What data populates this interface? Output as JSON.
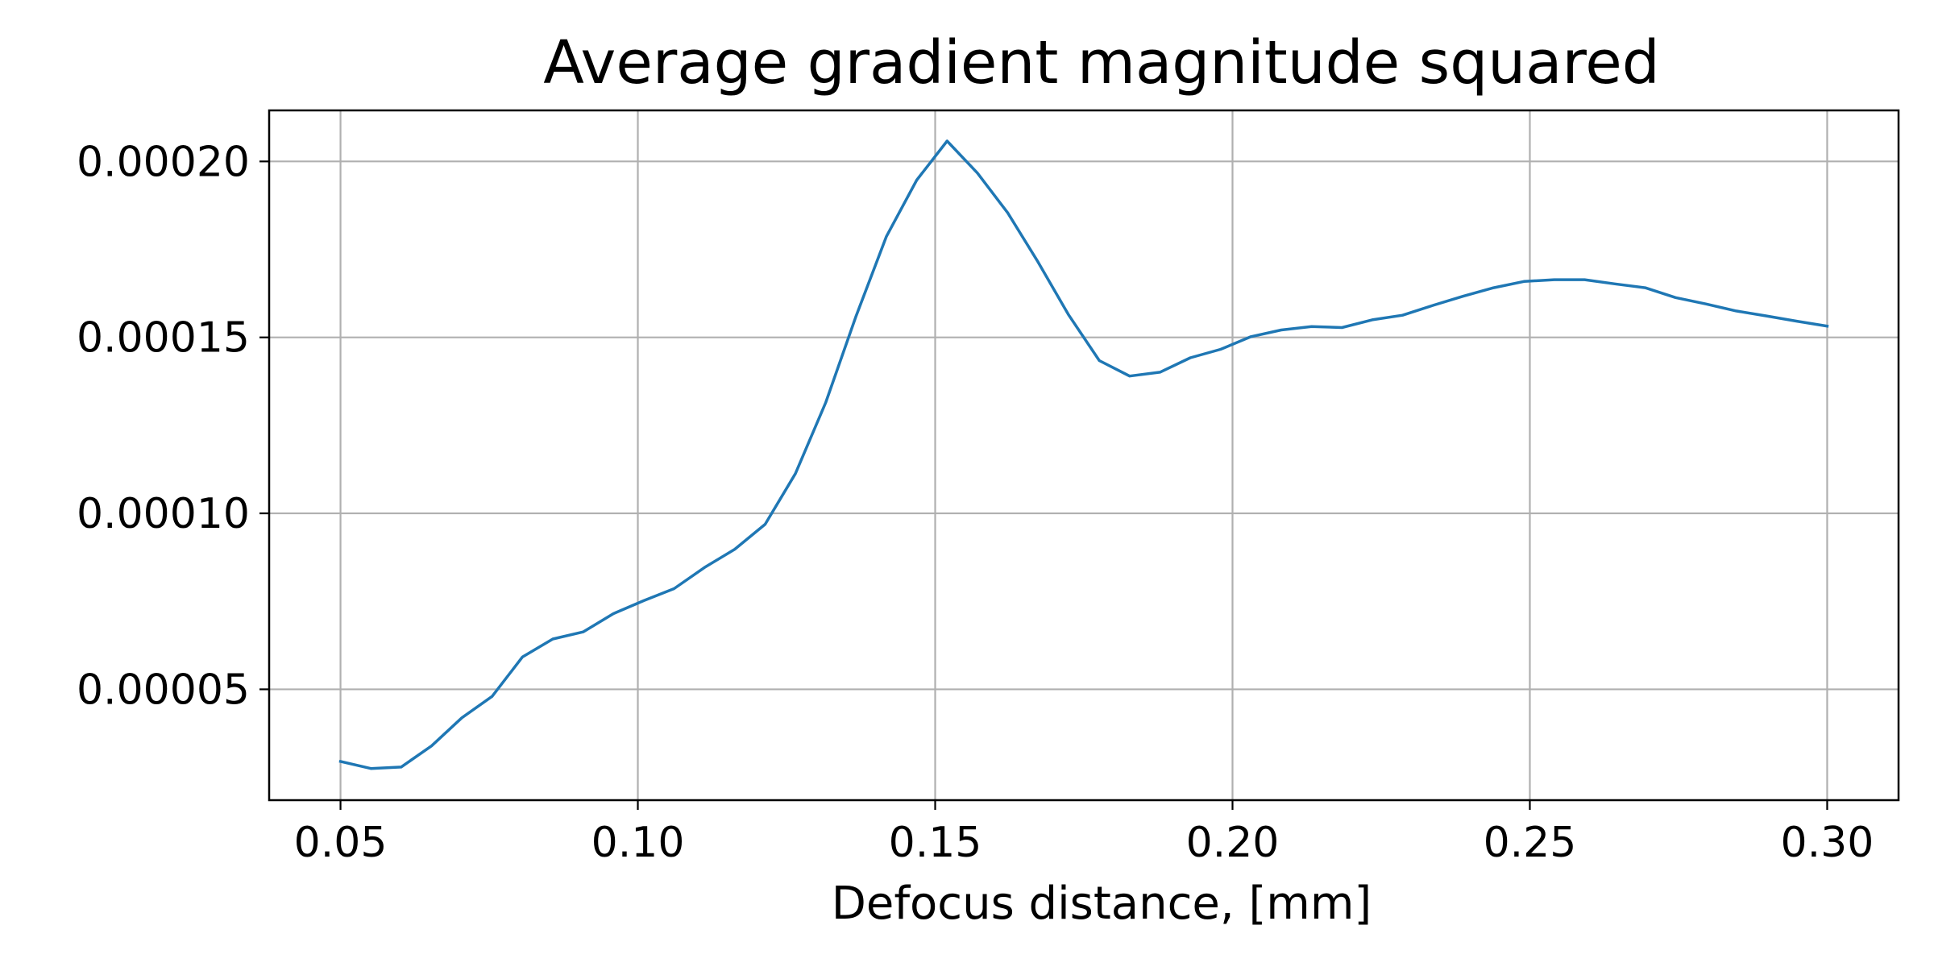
{
  "chart_data": {
    "type": "line",
    "title": "Average gradient magnitude squared",
    "xlabel": "Defocus distance, [mm]",
    "ylabel": "",
    "xlim": [
      0.038,
      0.312
    ],
    "ylim": [
      1.85e-05,
      0.0002145
    ],
    "grid": true,
    "legend": "none",
    "xticks": [
      0.05,
      0.1,
      0.15,
      0.2,
      0.25,
      0.3
    ],
    "xtick_labels": [
      "0.05",
      "0.10",
      "0.15",
      "0.20",
      "0.25",
      "0.30"
    ],
    "yticks": [
      5e-05,
      0.0001,
      0.00015,
      0.0002
    ],
    "ytick_labels": [
      "0.00005",
      "0.00010",
      "0.00015",
      "0.00020"
    ],
    "series": [
      {
        "color": "#1f77b4",
        "x": [
          0.05,
          0.0551,
          0.0602,
          0.0653,
          0.0704,
          0.0755,
          0.0806,
          0.0857,
          0.0908,
          0.0959,
          0.101,
          0.1061,
          0.1112,
          0.1163,
          0.1214,
          0.1265,
          0.1316,
          0.1367,
          0.1418,
          0.1469,
          0.152,
          0.1571,
          0.1622,
          0.1673,
          0.1724,
          0.1776,
          0.1827,
          0.1878,
          0.1929,
          0.198,
          0.2031,
          0.2082,
          0.2133,
          0.2184,
          0.2235,
          0.2286,
          0.2337,
          0.2388,
          0.2439,
          0.249,
          0.2541,
          0.2592,
          0.2643,
          0.2694,
          0.2745,
          0.2796,
          0.2847,
          0.2898,
          0.2949,
          0.3
        ],
        "y": [
          2.95e-05,
          2.75e-05,
          2.79e-05,
          3.39e-05,
          4.19e-05,
          4.8e-05,
          5.92e-05,
          6.43e-05,
          6.63e-05,
          7.15e-05,
          7.52e-05,
          7.86e-05,
          8.46e-05,
          8.98e-05,
          9.69e-05,
          0.0001113,
          0.0001315,
          0.0001561,
          0.0001787,
          0.0001947,
          0.0002058,
          0.0001967,
          0.0001854,
          0.0001714,
          0.0001565,
          0.0001434,
          0.000139,
          0.0001401,
          0.0001442,
          0.0001466,
          0.0001502,
          0.0001521,
          0.0001531,
          0.0001528,
          0.000155,
          0.0001563,
          0.0001591,
          0.0001617,
          0.0001641,
          0.0001659,
          0.0001664,
          0.0001664,
          0.0001652,
          0.0001641,
          0.0001613,
          0.0001595,
          0.0001575,
          0.0001561,
          0.0001546,
          0.0001532
        ]
      }
    ]
  }
}
